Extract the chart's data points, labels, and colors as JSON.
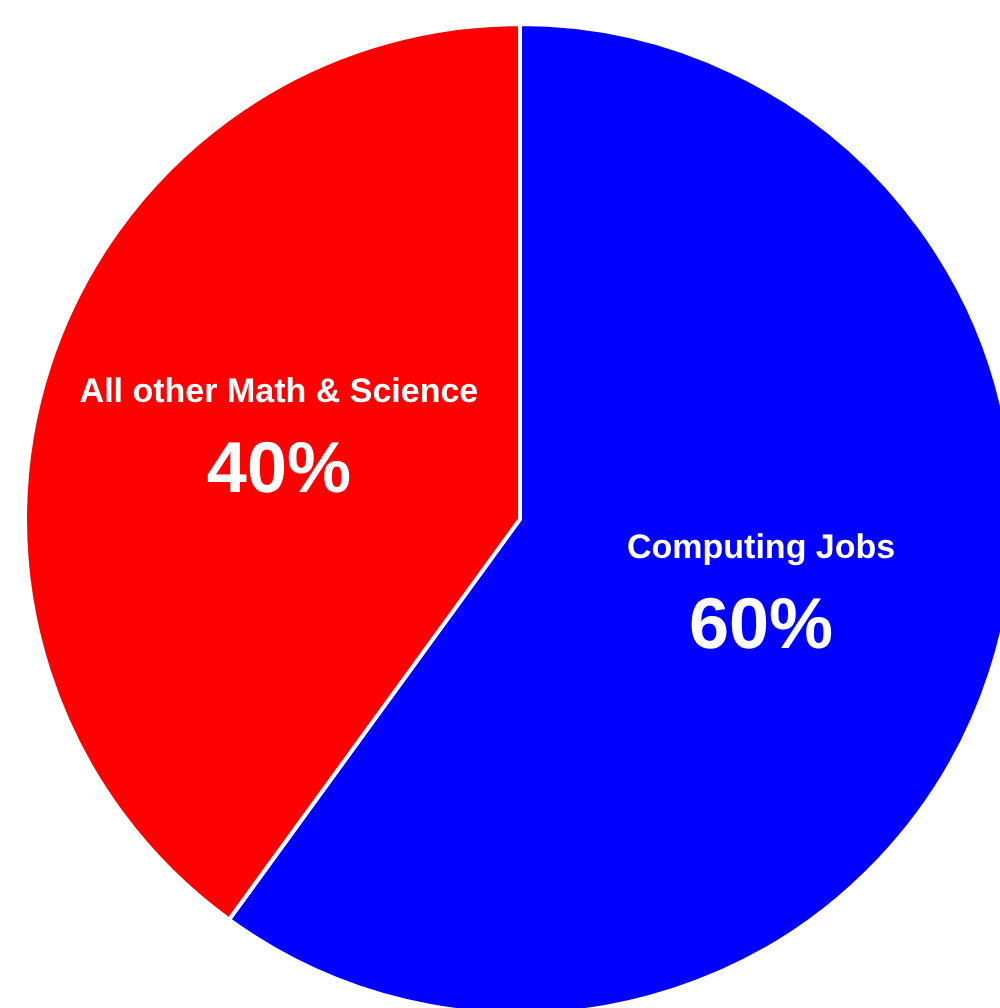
{
  "chart_data": {
    "type": "pie",
    "categories": [
      "Computing Jobs",
      "All other Math & Science"
    ],
    "values": [
      60,
      40
    ],
    "colors": [
      "#0000ff",
      "#ff0000"
    ],
    "value_labels": [
      "60%",
      "40%"
    ],
    "legend": false
  }
}
